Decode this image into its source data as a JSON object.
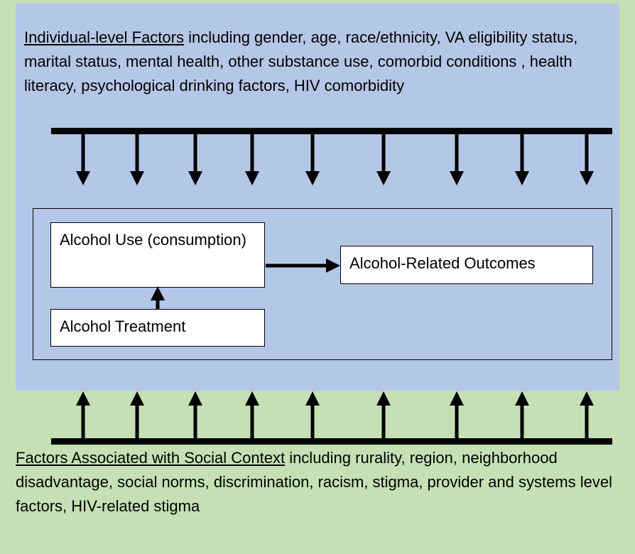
{
  "individual_factors": {
    "label": "Individual-level Factors",
    "text": "including gender, age, race/ethnicity, VA eligibility status, marital status, mental health, other substance use, comorbid conditions , health literacy, psychological drinking factors, HIV comorbidity"
  },
  "nodes": [
    {
      "label": "Alcohol Use (consumption)"
    },
    {
      "label": "Alcohol Treatment"
    },
    {
      "label": "Alcohol-Related Outcomes"
    }
  ],
  "social_factors": {
    "label": "Factors Associated with Social Context",
    "text": "including rurality, region, neighborhood disadvantage, social norms, discrimination, racism, stigma, provider and systems level factors, HIV-related stigma"
  }
}
